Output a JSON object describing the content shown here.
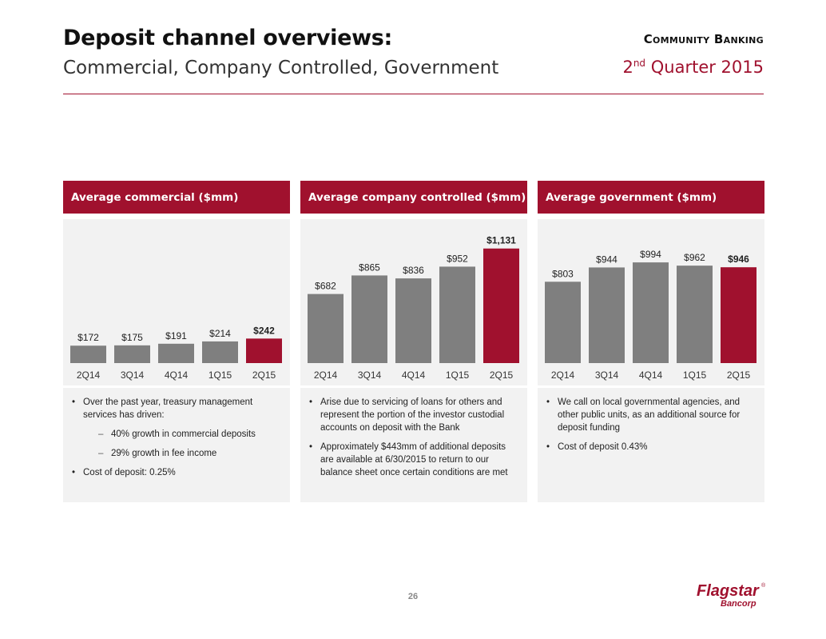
{
  "header": {
    "title": "Deposit channel overviews:",
    "subtitle": "Commercial, Company Controlled, Government",
    "section": "Community Banking",
    "quarter_num": "2",
    "quarter_sup": "nd",
    "quarter_rest": " Quarter 2015"
  },
  "colors": {
    "accent": "#a0112e",
    "bar": "#7f7f7f",
    "panel_bg": "#f2f2f2"
  },
  "panels": [
    {
      "title": "Average commercial ($mm)",
      "bullets": [
        {
          "text": "Over the past year, treasury management services has driven:",
          "sub": false
        },
        {
          "text": "40% growth in commercial deposits",
          "sub": true
        },
        {
          "text": "29% growth in fee income",
          "sub": true
        },
        {
          "text": "Cost of deposit: 0.25%",
          "sub": false
        }
      ]
    },
    {
      "title": "Average company controlled ($mm)",
      "bullets": [
        {
          "text": "Arise due to servicing of loans for others and represent the portion of the investor custodial accounts on deposit with the Bank",
          "sub": false
        },
        {
          "text": "Approximately $443mm of additional deposits are available at 6/30/2015 to return to our balance sheet once certain conditions are met",
          "sub": false
        }
      ]
    },
    {
      "title": "Average government ($mm)",
      "bullets": [
        {
          "text": "We call on local governmental agencies, and other public units, as an additional source for deposit funding",
          "sub": false
        },
        {
          "text": "Cost of deposit 0.43%",
          "sub": false
        }
      ]
    }
  ],
  "chart_data": [
    {
      "type": "bar",
      "title": "Average commercial ($mm)",
      "categories": [
        "2Q14",
        "3Q14",
        "4Q14",
        "1Q15",
        "2Q15"
      ],
      "values": [
        172,
        175,
        191,
        214,
        242
      ],
      "labels": [
        "$172",
        "$175",
        "$191",
        "$214",
        "$242"
      ],
      "highlight_index": 4,
      "ylim": [
        0,
        1200
      ]
    },
    {
      "type": "bar",
      "title": "Average company controlled ($mm)",
      "categories": [
        "2Q14",
        "3Q14",
        "4Q14",
        "1Q15",
        "2Q15"
      ],
      "values": [
        682,
        865,
        836,
        952,
        1131
      ],
      "labels": [
        "$682",
        "$865",
        "$836",
        "$952",
        "$1,131"
      ],
      "highlight_index": 4,
      "ylim": [
        0,
        1200
      ]
    },
    {
      "type": "bar",
      "title": "Average government ($mm)",
      "categories": [
        "2Q14",
        "3Q14",
        "4Q14",
        "1Q15",
        "2Q15"
      ],
      "values": [
        803,
        944,
        994,
        962,
        946
      ],
      "labels": [
        "$803",
        "$944",
        "$994",
        "$962",
        "$946"
      ],
      "highlight_index": 4,
      "ylim": [
        0,
        1200
      ]
    }
  ],
  "footer": {
    "page_number": "26"
  },
  "logo": {
    "name": "Flagstar",
    "sub": "Bancorp",
    "mark": "®"
  }
}
